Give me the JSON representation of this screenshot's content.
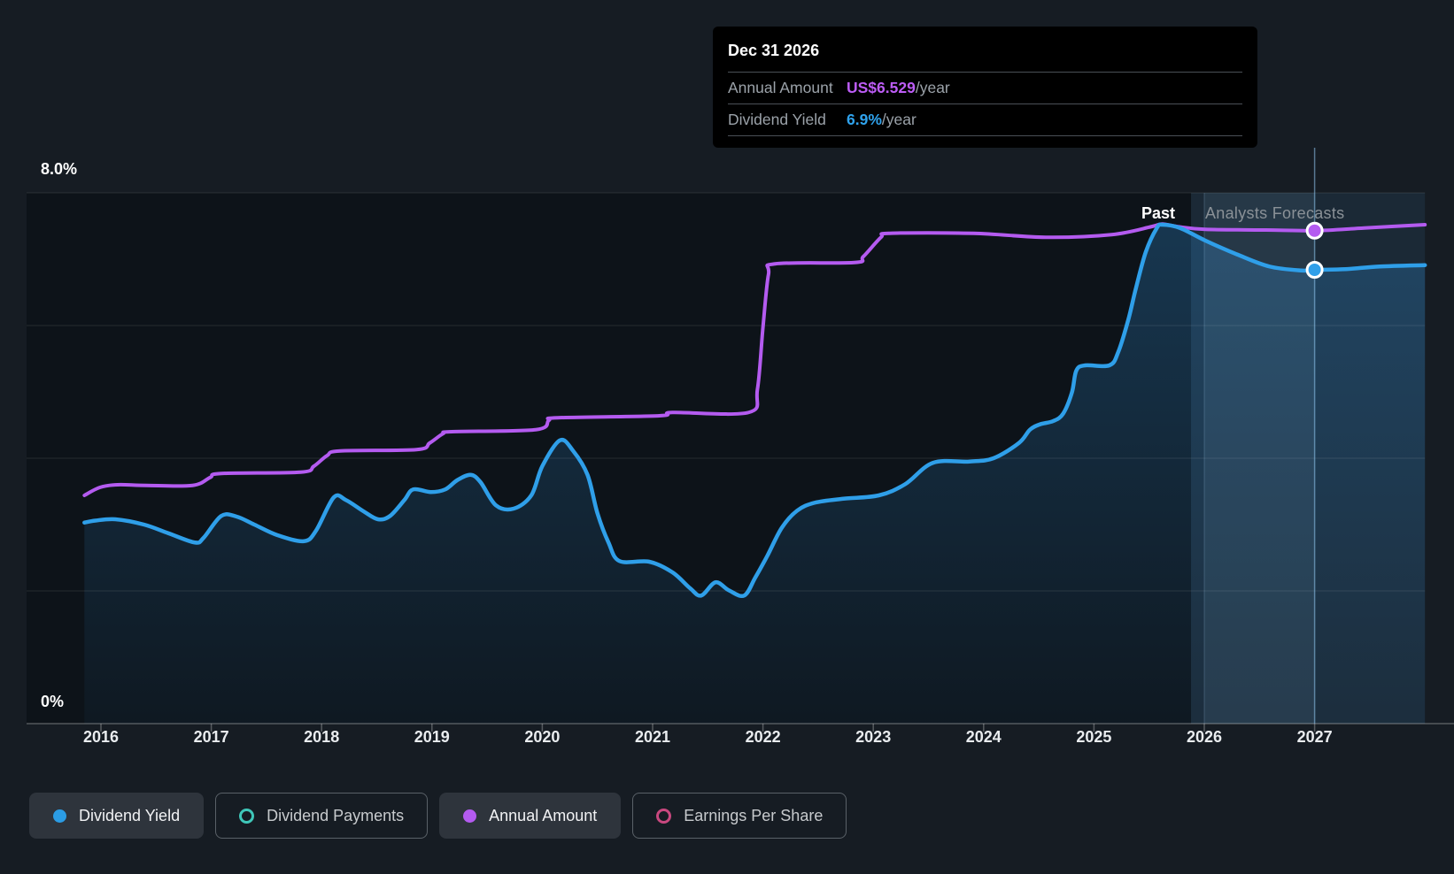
{
  "annotations": {
    "past": "Past",
    "forecast": "Analysts Forecasts"
  },
  "axis": {
    "y_top_label": "8.0%",
    "y_bottom_label": "0%",
    "years": [
      "2016",
      "2017",
      "2018",
      "2019",
      "2020",
      "2021",
      "2022",
      "2023",
      "2024",
      "2025",
      "2026",
      "2027"
    ]
  },
  "tooltip": {
    "title": "Dec 31 2026",
    "rows": [
      {
        "label": "Annual Amount",
        "value": "US$6.529",
        "suffix": "/year",
        "color": "#bc5cf5"
      },
      {
        "label": "Dividend Yield",
        "value": "6.9%",
        "suffix": "/year",
        "color": "#2fa2ec"
      }
    ]
  },
  "legend": [
    {
      "label": "Dividend Yield",
      "color": "#2b9ce4",
      "style": "filled",
      "active": true
    },
    {
      "label": "Dividend Payments",
      "color": "#3fc7b9",
      "style": "ring",
      "active": false
    },
    {
      "label": "Annual Amount",
      "color": "#b45bf0",
      "style": "filled",
      "active": true
    },
    {
      "label": "Earnings Per Share",
      "color": "#c9487f",
      "style": "ring",
      "active": false
    }
  ],
  "chart_data": {
    "type": "area",
    "title": "Dividend yield history and forecast",
    "x_axis": {
      "unit": "year",
      "range": [
        2015.33,
        2028.0
      ],
      "ticks": [
        2016,
        2017,
        2018,
        2019,
        2020,
        2021,
        2022,
        2023,
        2024,
        2025,
        2026,
        2027
      ]
    },
    "y_axis": {
      "unit": "percent",
      "min": 0,
      "max": 8,
      "gridline_step": 2,
      "shown_labels": [
        "8.0%",
        "0%"
      ]
    },
    "past_forecast_boundary": 2025.88,
    "highlight_band": [
      2026.0,
      2027.0
    ],
    "crosshair_x": 2027.0,
    "legend_position": "bottom",
    "series": [
      {
        "name": "Dividend Yield",
        "color": "#2f9fe9",
        "unit": "percent",
        "points": [
          [
            2015.85,
            3.03
          ],
          [
            2015.95,
            3.06
          ],
          [
            2016.13,
            3.08
          ],
          [
            2016.39,
            3.0
          ],
          [
            2016.61,
            2.87
          ],
          [
            2016.85,
            2.73
          ],
          [
            2016.93,
            2.8
          ],
          [
            2017.09,
            3.13
          ],
          [
            2017.23,
            3.12
          ],
          [
            2017.39,
            3.0
          ],
          [
            2017.6,
            2.84
          ],
          [
            2017.84,
            2.75
          ],
          [
            2017.95,
            2.91
          ],
          [
            2018.11,
            3.41
          ],
          [
            2018.22,
            3.37
          ],
          [
            2018.38,
            3.2
          ],
          [
            2018.51,
            3.08
          ],
          [
            2018.62,
            3.13
          ],
          [
            2018.75,
            3.37
          ],
          [
            2018.83,
            3.53
          ],
          [
            2018.99,
            3.49
          ],
          [
            2019.12,
            3.53
          ],
          [
            2019.23,
            3.67
          ],
          [
            2019.35,
            3.75
          ],
          [
            2019.44,
            3.64
          ],
          [
            2019.58,
            3.29
          ],
          [
            2019.74,
            3.24
          ],
          [
            2019.9,
            3.44
          ],
          [
            2020.0,
            3.88
          ],
          [
            2020.16,
            4.27
          ],
          [
            2020.28,
            4.11
          ],
          [
            2020.41,
            3.75
          ],
          [
            2020.5,
            3.17
          ],
          [
            2020.6,
            2.73
          ],
          [
            2020.7,
            2.45
          ],
          [
            2020.97,
            2.44
          ],
          [
            2021.18,
            2.28
          ],
          [
            2021.34,
            2.04
          ],
          [
            2021.44,
            1.93
          ],
          [
            2021.57,
            2.13
          ],
          [
            2021.69,
            2.01
          ],
          [
            2021.83,
            1.93
          ],
          [
            2021.93,
            2.2
          ],
          [
            2022.04,
            2.53
          ],
          [
            2022.17,
            2.95
          ],
          [
            2022.31,
            3.21
          ],
          [
            2022.47,
            3.33
          ],
          [
            2022.73,
            3.39
          ],
          [
            2023.05,
            3.44
          ],
          [
            2023.29,
            3.61
          ],
          [
            2023.54,
            3.93
          ],
          [
            2023.87,
            3.95
          ],
          [
            2024.09,
            4.0
          ],
          [
            2024.32,
            4.23
          ],
          [
            2024.42,
            4.43
          ],
          [
            2024.51,
            4.51
          ],
          [
            2024.63,
            4.56
          ],
          [
            2024.72,
            4.67
          ],
          [
            2024.8,
            4.99
          ],
          [
            2024.84,
            5.32
          ],
          [
            2024.92,
            5.4
          ],
          [
            2025.14,
            5.4
          ],
          [
            2025.22,
            5.6
          ],
          [
            2025.31,
            6.08
          ],
          [
            2025.38,
            6.56
          ],
          [
            2025.47,
            7.11
          ],
          [
            2025.57,
            7.47
          ],
          [
            2025.62,
            7.52
          ],
          [
            2025.78,
            7.47
          ],
          [
            2026.01,
            7.28
          ],
          [
            2026.3,
            7.07
          ],
          [
            2026.59,
            6.89
          ],
          [
            2026.88,
            6.83
          ],
          [
            2027.01,
            6.84
          ],
          [
            2027.28,
            6.85
          ],
          [
            2027.59,
            6.89
          ],
          [
            2028.0,
            6.91
          ]
        ]
      },
      {
        "name": "Annual Amount",
        "color": "#b45bf0",
        "unit": "axis_equivalent_percent",
        "labeled_point": {
          "x": 2027.0,
          "display": "US$6.529/year"
        },
        "points": [
          [
            2015.85,
            3.44
          ],
          [
            2015.99,
            3.56
          ],
          [
            2016.15,
            3.6
          ],
          [
            2016.41,
            3.59
          ],
          [
            2016.83,
            3.59
          ],
          [
            2016.99,
            3.71
          ],
          [
            2017.09,
            3.77
          ],
          [
            2017.81,
            3.79
          ],
          [
            2017.93,
            3.88
          ],
          [
            2018.05,
            4.04
          ],
          [
            2018.17,
            4.11
          ],
          [
            2018.86,
            4.13
          ],
          [
            2018.98,
            4.23
          ],
          [
            2019.1,
            4.37
          ],
          [
            2019.18,
            4.4
          ],
          [
            2019.94,
            4.43
          ],
          [
            2020.06,
            4.57
          ],
          [
            2020.14,
            4.61
          ],
          [
            2021.06,
            4.64
          ],
          [
            2021.18,
            4.69
          ],
          [
            2021.87,
            4.69
          ],
          [
            2021.95,
            5.04
          ],
          [
            2022.0,
            5.97
          ],
          [
            2022.05,
            6.77
          ],
          [
            2022.11,
            6.93
          ],
          [
            2022.83,
            6.95
          ],
          [
            2022.91,
            7.04
          ],
          [
            2023.07,
            7.33
          ],
          [
            2023.15,
            7.39
          ],
          [
            2023.91,
            7.39
          ],
          [
            2024.56,
            7.33
          ],
          [
            2025.16,
            7.37
          ],
          [
            2025.52,
            7.49
          ],
          [
            2025.62,
            7.53
          ],
          [
            2025.76,
            7.49
          ],
          [
            2026.01,
            7.45
          ],
          [
            2026.56,
            7.44
          ],
          [
            2027.01,
            7.43
          ],
          [
            2027.45,
            7.47
          ],
          [
            2028.0,
            7.52
          ]
        ]
      }
    ],
    "markers": [
      {
        "series": "Annual Amount",
        "x": 2027.0,
        "axis_value": 7.43,
        "color": "#b45bf0"
      },
      {
        "series": "Dividend Yield",
        "x": 2027.0,
        "axis_value": 6.84,
        "color": "#2f9fe9"
      }
    ]
  }
}
